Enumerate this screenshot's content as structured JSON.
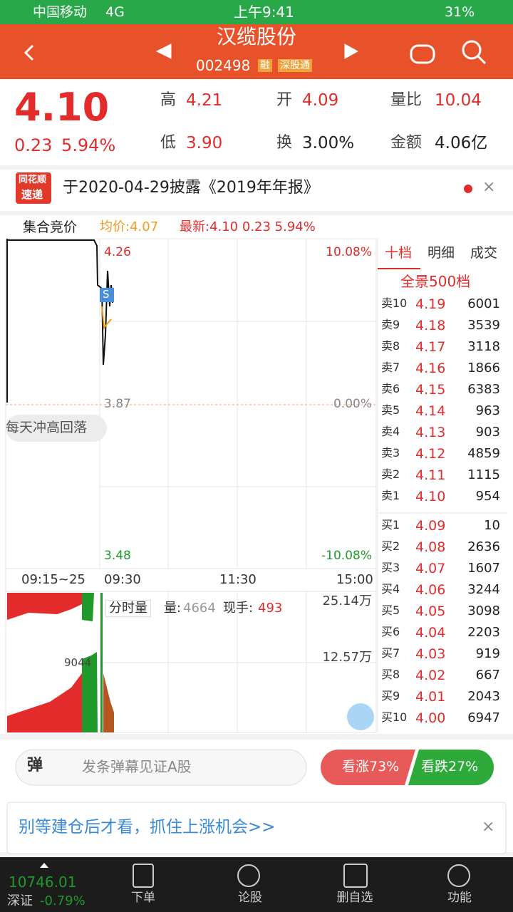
{
  "status": {
    "carrier": "中国移动",
    "network": "4G",
    "time": "上午9:41",
    "battery": "31%"
  },
  "header": {
    "name": "汉缆股份",
    "code": "002498",
    "tags": [
      "融",
      "深股通"
    ]
  },
  "quote": {
    "price": "4.10",
    "change": "0.23",
    "pct": "5.94%",
    "stats": [
      {
        "label": "高",
        "value": "4.21"
      },
      {
        "label": "开",
        "value": "4.09"
      },
      {
        "label": "量比",
        "value": "10.04"
      },
      {
        "label": "低",
        "value": "3.90"
      },
      {
        "label": "换",
        "value": "3.00%"
      },
      {
        "label": "金额",
        "value": "4.06亿"
      }
    ]
  },
  "news": {
    "logo": [
      "同花顺",
      "速递"
    ],
    "text": "于2020-04-29披露《2019年年报》"
  },
  "chart": {
    "tab": "集合竞价",
    "avg": "均价:4.07",
    "latest": "最新:4.10 0.23 5.94%",
    "price_labels": [
      "4.26",
      "3.87",
      "3.48"
    ],
    "pct_labels": [
      "10.08%",
      "0.00%",
      "-10.08%"
    ],
    "time_labels": [
      "09:15~25",
      "09:30",
      "11:30",
      "15:00"
    ],
    "tag": "每天冲高回落",
    "marker": "S",
    "volume": {
      "title": "分时量",
      "vol_label": "量:",
      "vol": "4664",
      "hand_label": "现手:",
      "hand": "493",
      "max": "25.14万",
      "mid": "12.57万",
      "peak": "9044"
    }
  },
  "book": {
    "tabs": [
      "十档",
      "明细",
      "成交"
    ],
    "title": "全景500档",
    "sell": [
      {
        "level": "卖10",
        "price": "4.19",
        "volume": "6001"
      },
      {
        "level": "卖9",
        "price": "4.18",
        "volume": "3539"
      },
      {
        "level": "卖8",
        "price": "4.17",
        "volume": "3118"
      },
      {
        "level": "卖7",
        "price": "4.16",
        "volume": "1866"
      },
      {
        "level": "卖6",
        "price": "4.15",
        "volume": "6383"
      },
      {
        "level": "卖5",
        "price": "4.14",
        "volume": "963"
      },
      {
        "level": "卖4",
        "price": "4.13",
        "volume": "903"
      },
      {
        "level": "卖3",
        "price": "4.12",
        "volume": "4859"
      },
      {
        "level": "卖2",
        "price": "4.11",
        "volume": "1115"
      },
      {
        "level": "卖1",
        "price": "4.10",
        "volume": "954"
      }
    ],
    "buy": [
      {
        "level": "买1",
        "price": "4.09",
        "volume": "10"
      },
      {
        "level": "买2",
        "price": "4.08",
        "volume": "2636"
      },
      {
        "level": "买3",
        "price": "4.07",
        "volume": "1607"
      },
      {
        "level": "买4",
        "price": "4.06",
        "volume": "3244"
      },
      {
        "level": "买5",
        "price": "4.05",
        "volume": "3098"
      },
      {
        "level": "买6",
        "price": "4.04",
        "volume": "2203"
      },
      {
        "level": "买7",
        "price": "4.03",
        "volume": "919"
      },
      {
        "level": "买8",
        "price": "4.02",
        "volume": "667"
      },
      {
        "level": "买9",
        "price": "4.01",
        "volume": "2043"
      },
      {
        "level": "买10",
        "price": "4.00",
        "volume": "6947"
      }
    ]
  },
  "danmu": {
    "icon": "弹",
    "placeholder": "发条弹幕见证A股",
    "up": "看涨73%",
    "down": "看跌27%"
  },
  "ad": {
    "text": "别等建仓后才看，抓住上涨机会>>"
  },
  "footer": {
    "index_value": "10746.01",
    "index_name": "深证",
    "index_pct": "-0.79%",
    "nav": [
      "下单",
      "论股",
      "删自选",
      "功能"
    ]
  }
}
